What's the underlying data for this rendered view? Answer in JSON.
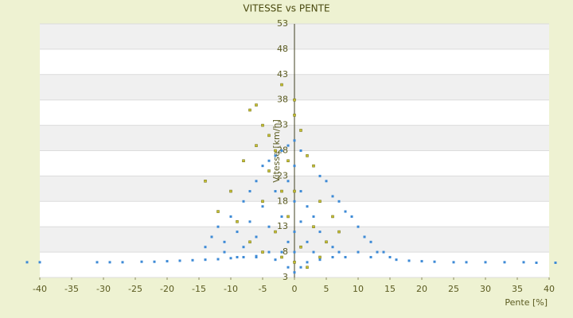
{
  "chart_data": {
    "type": "scatter",
    "title": "VITESSE vs PENTE",
    "x_label": "Pente [%]",
    "y_label": "Vitesse [km/h]",
    "xlim": [
      -40,
      40
    ],
    "xticks": [
      -40,
      -35,
      -30,
      -25,
      -20,
      -15,
      -10,
      -5,
      0,
      5,
      10,
      15,
      20,
      25,
      30,
      35,
      40
    ],
    "ylim": [
      3,
      53
    ],
    "yticks": [
      3,
      8,
      13,
      18,
      23,
      28,
      33,
      38,
      43,
      48,
      53
    ],
    "grid": true,
    "banded": true,
    "series": [
      {
        "color": "#3d8ad6",
        "x": [
          -42,
          -40,
          -31,
          -29,
          -27,
          -24,
          -22,
          -20,
          -18,
          -16,
          -14,
          -12,
          -10,
          -8,
          -6,
          18,
          20,
          22,
          25,
          27,
          30,
          33,
          36,
          38,
          41,
          -14,
          -13,
          -12,
          -11,
          -10,
          -9,
          -8,
          -8,
          -7,
          -7,
          -6,
          -6,
          -5,
          -5,
          -4,
          -4,
          -3,
          -3,
          -2,
          -2,
          -1,
          -1,
          -1,
          0,
          0,
          0,
          0,
          0,
          1,
          1,
          1,
          2,
          2,
          2,
          3,
          3,
          4,
          4,
          5,
          5,
          6,
          6,
          7,
          7,
          8,
          9,
          10,
          10,
          11,
          12,
          13,
          14,
          15,
          16,
          -2,
          -4,
          3,
          6,
          -1,
          1,
          2,
          4,
          -3,
          0,
          -6,
          -9,
          -11,
          8,
          12
        ],
        "values": [
          6,
          6,
          6,
          6,
          6,
          6.1,
          6.1,
          6.2,
          6.3,
          6.4,
          6.5,
          6.6,
          6.8,
          7,
          7.2,
          6.3,
          6.2,
          6.1,
          6,
          6,
          6,
          6,
          6,
          5.9,
          5.9,
          9,
          11,
          13,
          10,
          15,
          12,
          18,
          9,
          20,
          14,
          22,
          11,
          25,
          17,
          26,
          13,
          27,
          20,
          28,
          15,
          29,
          22,
          10,
          30,
          25,
          18,
          12,
          8,
          28,
          20,
          14,
          27,
          17,
          10,
          25,
          15,
          23,
          12,
          22,
          10,
          19,
          9,
          18,
          8,
          16,
          15,
          13,
          8,
          11,
          10,
          8,
          8,
          7,
          6.5,
          8,
          8,
          8,
          7,
          5,
          5,
          6,
          6.5,
          6.5,
          4,
          7,
          7,
          8,
          7,
          7
        ]
      },
      {
        "color": "#c8c030",
        "x": [
          -7,
          -6,
          -5,
          -4,
          -2,
          0,
          0,
          -3,
          -6,
          -14,
          -12,
          -10,
          -8,
          -4,
          -2,
          1,
          2,
          3,
          4,
          6,
          -1,
          -5,
          -3,
          0,
          1,
          2,
          3,
          5,
          7,
          -7,
          -9,
          -1,
          0,
          -2,
          -5,
          4
        ],
        "values": [
          36,
          37,
          33,
          31,
          41,
          38,
          35,
          28,
          29,
          22,
          16,
          20,
          26,
          24,
          20,
          32,
          27,
          25,
          18,
          15,
          26,
          18,
          12,
          6,
          9,
          5,
          13,
          10,
          12,
          10,
          14,
          15,
          20,
          7,
          8,
          7
        ]
      }
    ]
  }
}
